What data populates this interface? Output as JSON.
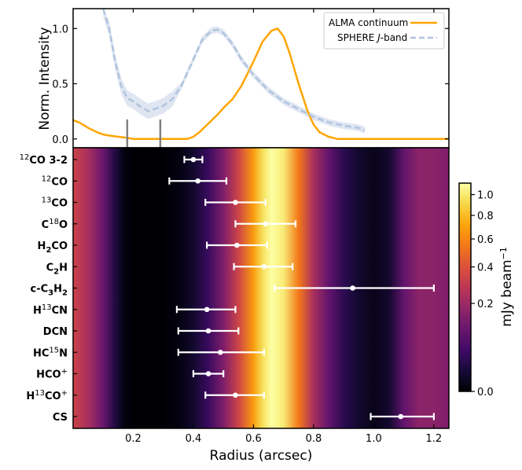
{
  "chart_data": [
    {
      "type": "line",
      "panel": "top",
      "ylabel": "Norm. Intensity",
      "xlabel": "Radius (arcsec)",
      "xlim": [
        0.0,
        1.25
      ],
      "ylim": [
        -0.08,
        1.18
      ],
      "yticks": [
        0.0,
        0.5,
        1.0
      ],
      "ytick_labels": [
        "0.0",
        "0.5",
        "1.0"
      ],
      "legend_position": "top-right",
      "series": [
        {
          "name": "ALMA continuum",
          "color": "#FFA500",
          "style": "solid",
          "x": [
            0.0,
            0.02,
            0.05,
            0.08,
            0.1,
            0.12,
            0.15,
            0.18,
            0.2,
            0.22,
            0.25,
            0.28,
            0.3,
            0.32,
            0.35,
            0.38,
            0.4,
            0.42,
            0.45,
            0.48,
            0.5,
            0.53,
            0.56,
            0.6,
            0.63,
            0.66,
            0.68,
            0.7,
            0.72,
            0.75,
            0.78,
            0.8,
            0.82,
            0.85,
            0.88,
            0.9,
            0.92,
            0.95,
            0.98,
            1.0,
            1.05,
            1.1,
            1.15,
            1.2,
            1.25
          ],
          "y": [
            0.17,
            0.15,
            0.1,
            0.06,
            0.04,
            0.03,
            0.02,
            0.01,
            0.0,
            0.0,
            0.0,
            0.0,
            0.0,
            0.0,
            0.0,
            0.0,
            0.02,
            0.06,
            0.14,
            0.22,
            0.28,
            0.36,
            0.48,
            0.7,
            0.88,
            0.98,
            1.0,
            0.93,
            0.78,
            0.5,
            0.25,
            0.13,
            0.06,
            0.02,
            0.0,
            0.0,
            0.0,
            0.0,
            0.0,
            0.0,
            0.0,
            0.0,
            0.0,
            0.0,
            0.0
          ]
        },
        {
          "name": "SPHERE J-band",
          "color": "#B0C4DE",
          "style": "dashed",
          "x": [
            0.1,
            0.12,
            0.14,
            0.16,
            0.18,
            0.2,
            0.22,
            0.25,
            0.28,
            0.3,
            0.33,
            0.36,
            0.4,
            0.43,
            0.46,
            0.48,
            0.5,
            0.53,
            0.56,
            0.6,
            0.65,
            0.7,
            0.75,
            0.8,
            0.85,
            0.9,
            0.95,
            0.97
          ],
          "y": [
            1.18,
            1.0,
            0.7,
            0.48,
            0.37,
            0.34,
            0.3,
            0.25,
            0.28,
            0.3,
            0.36,
            0.48,
            0.72,
            0.9,
            0.98,
            0.99,
            0.96,
            0.86,
            0.72,
            0.58,
            0.44,
            0.34,
            0.27,
            0.2,
            0.15,
            0.12,
            0.1,
            0.08
          ]
        }
      ],
      "markers": [
        0.18,
        0.29
      ],
      "legend": [
        "ALMA continuum",
        "SPHERE J-band"
      ]
    },
    {
      "type": "heatmap",
      "panel": "bottom",
      "xlabel": "Radius (arcsec)",
      "xlim": [
        0.0,
        1.25
      ],
      "xticks": [
        0.2,
        0.4,
        0.6,
        0.8,
        1.0,
        1.2
      ],
      "xtick_labels": [
        "0.2",
        "0.4",
        "0.6",
        "0.8",
        "1.0",
        "1.2"
      ],
      "background_profile": {
        "x": [
          0.0,
          0.05,
          0.1,
          0.14,
          0.17,
          0.2,
          0.25,
          0.3,
          0.35,
          0.4,
          0.45,
          0.5,
          0.55,
          0.6,
          0.63,
          0.66,
          0.7,
          0.75,
          0.8,
          0.85,
          0.9,
          0.95,
          1.0,
          1.05,
          1.1,
          1.15,
          1.2,
          1.25
        ],
        "intensity": [
          0.55,
          0.45,
          0.3,
          0.12,
          0.02,
          0.0,
          0.0,
          0.0,
          0.02,
          0.08,
          0.18,
          0.35,
          0.55,
          0.78,
          0.92,
          1.0,
          0.95,
          0.7,
          0.45,
          0.28,
          0.15,
          0.08,
          0.04,
          0.08,
          0.28,
          0.38,
          0.38,
          0.35
        ]
      },
      "molecules": [
        {
          "name": "12CO 3-2",
          "sup": "12",
          "base": "CO 3-2",
          "center": 0.4,
          "err_lo": 0.37,
          "err_hi": 0.43
        },
        {
          "name": "12CO",
          "sup": "12",
          "base": "CO",
          "center": 0.415,
          "err_lo": 0.32,
          "err_hi": 0.51
        },
        {
          "name": "13CO",
          "sup": "13",
          "base": "CO",
          "center": 0.54,
          "err_lo": 0.44,
          "err_hi": 0.64
        },
        {
          "name": "C18O",
          "pre": "C",
          "sup": "18",
          "base": "O",
          "center": 0.64,
          "err_lo": 0.54,
          "err_hi": 0.74
        },
        {
          "name": "H2CO",
          "pre": "H",
          "sub": "2",
          "base": "CO",
          "center": 0.545,
          "err_lo": 0.445,
          "err_hi": 0.645
        },
        {
          "name": "C2H",
          "pre": "C",
          "sub": "2",
          "base": "H",
          "center": 0.635,
          "err_lo": 0.535,
          "err_hi": 0.73
        },
        {
          "name": "c-C3H2",
          "pre": "c-C",
          "sub": "3",
          "base": "H",
          "sub2": "2",
          "center": 0.93,
          "err_lo": 0.67,
          "err_hi": 1.2
        },
        {
          "name": "H13CN",
          "pre": "H",
          "sup": "13",
          "base": "CN",
          "center": 0.445,
          "err_lo": 0.345,
          "err_hi": 0.54
        },
        {
          "name": "DCN",
          "base": "DCN",
          "center": 0.45,
          "err_lo": 0.35,
          "err_hi": 0.55
        },
        {
          "name": "HC15N",
          "pre": "HC",
          "sup": "15",
          "base": "N",
          "center": 0.49,
          "err_lo": 0.35,
          "err_hi": 0.635
        },
        {
          "name": "HCO+",
          "base": "HCO",
          "sup_after": "+",
          "center": 0.45,
          "err_lo": 0.4,
          "err_hi": 0.5
        },
        {
          "name": "H13CO+",
          "pre": "H",
          "sup": "13",
          "base": "CO",
          "sup_after": "+",
          "center": 0.54,
          "err_lo": 0.44,
          "err_hi": 0.635
        },
        {
          "name": "CS",
          "base": "CS",
          "center": 1.09,
          "err_lo": 0.99,
          "err_hi": 1.2
        }
      ],
      "colorbar": {
        "label": "mJy beam",
        "label_sup": "−1",
        "ticks": [
          0.0,
          0.2,
          0.4,
          0.6,
          0.8,
          1.0
        ],
        "tick_labels": [
          "0.0",
          "0.2",
          "0.4",
          "0.6",
          "0.8",
          "1.0"
        ],
        "scale": "power",
        "vmax": 1.12,
        "colormap": "inferno"
      }
    }
  ]
}
